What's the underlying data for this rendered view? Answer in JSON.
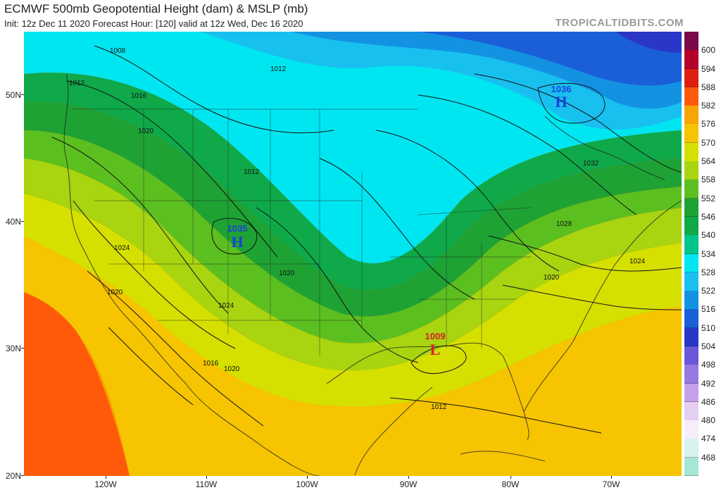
{
  "header": {
    "title": "ECMWF 500mb Geopotential Height (dam) & MSLP (mb)",
    "subtitle": "Init: 12z Dec 11 2020   Forecast Hour: [120]   valid at 12z Wed, Dec 16 2020",
    "credit": "TROPICALTIDBITS.COM"
  },
  "map": {
    "lat_labels": [
      "50N",
      "40N",
      "30N",
      "20N"
    ],
    "lon_labels": [
      "120W",
      "110W",
      "100W",
      "90W",
      "80W",
      "70W"
    ],
    "pressure_centers": [
      {
        "type": "H",
        "value": "1036",
        "color": "#1e3fd8"
      },
      {
        "type": "H",
        "value": "1035",
        "color": "#1e3fd8"
      },
      {
        "type": "L",
        "value": "1009",
        "color": "#d8202a"
      }
    ],
    "isobar_labels": [
      "1008",
      "1012",
      "1016",
      "1020",
      "1012",
      "1024",
      "1020",
      "1020",
      "1024",
      "1016",
      "1020",
      "1012",
      "1032",
      "1028",
      "1024",
      "1020",
      "1012"
    ]
  },
  "colorbar": {
    "labels": [
      "600",
      "594",
      "588",
      "582",
      "576",
      "570",
      "564",
      "558",
      "552",
      "546",
      "540",
      "534",
      "528",
      "522",
      "516",
      "510",
      "504",
      "498",
      "492",
      "486",
      "480",
      "474",
      "468"
    ],
    "colors": [
      "#7a0a4a",
      "#b4002a",
      "#e01e10",
      "#ff5a0a",
      "#f7a500",
      "#f6c400",
      "#d6e000",
      "#a8d410",
      "#5cbf20",
      "#1ea234",
      "#0fa94a",
      "#00c48a",
      "#00e6f0",
      "#18c0f0",
      "#1392e2",
      "#1a5fd8",
      "#2a36c8",
      "#6a58d8",
      "#9a78e2",
      "#c4a0ea",
      "#e4cef2",
      "#f6eef8",
      "#d8f2ee",
      "#a6e6d4"
    ]
  }
}
